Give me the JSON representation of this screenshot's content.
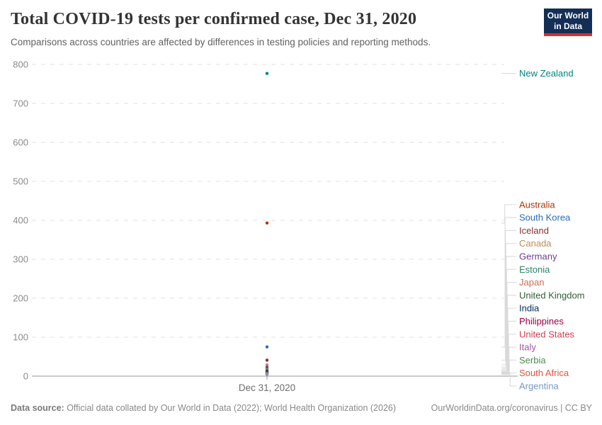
{
  "header": {
    "title": "Total COVID-19 tests per confirmed case, Dec 31, 2020",
    "subtitle": "Comparisons across countries are affected by differences in testing policies and reporting methods."
  },
  "logo": {
    "line1": "Our World",
    "line2": "in Data",
    "bg_color": "#132F56",
    "stripe_color": "#DE2C26"
  },
  "footer": {
    "source_label": "Data source:",
    "source_text": " Official data collated by Our World in Data (2022); World Health Organization (2026)",
    "link_text": "OurWorldinData.org/coronavirus | CC BY"
  },
  "chart_data": {
    "type": "scatter",
    "title": "Total COVID-19 tests per confirmed case, Dec 31, 2020",
    "x_tick_label": "Dec 31, 2020",
    "xlabel": "",
    "ylabel": "",
    "ylim": [
      0,
      800
    ],
    "yticks": [
      0,
      100,
      200,
      300,
      400,
      500,
      600,
      700,
      800
    ],
    "grid": "horizontal-dashed",
    "legend_position": "right-entity-labels",
    "axis_color": "#969696",
    "gridline_color": "#E2E2E2",
    "tick_label_color": "#8A8A8A",
    "connector_color": "#D8D8D8",
    "series": [
      {
        "name": "New Zealand",
        "value": 777,
        "color": "#00847E"
      },
      {
        "name": "Australia",
        "value": 393,
        "color": "#B13507"
      },
      {
        "name": "South Korea",
        "value": 75,
        "color": "#286BBB"
      },
      {
        "name": "Iceland",
        "value": 41,
        "color": "#883039"
      },
      {
        "name": "Canada",
        "value": 29,
        "color": "#BC8E5A"
      },
      {
        "name": "Germany",
        "value": 23,
        "color": "#6D3E91"
      },
      {
        "name": "Estonia",
        "value": 19,
        "color": "#2C8465"
      },
      {
        "name": "Japan",
        "value": 16,
        "color": "#C96E54"
      },
      {
        "name": "United Kingdom",
        "value": 13,
        "color": "#2E5E34"
      },
      {
        "name": "India",
        "value": 11,
        "color": "#00295B"
      },
      {
        "name": "Philippines",
        "value": 9.4,
        "color": "#970046"
      },
      {
        "name": "United States",
        "value": 8.3,
        "color": "#D73C50"
      },
      {
        "name": "Italy",
        "value": 7.4,
        "color": "#A2559C"
      },
      {
        "name": "Serbia",
        "value": 6,
        "color": "#4C8C4A"
      },
      {
        "name": "South Africa",
        "value": 5,
        "color": "#DC5746"
      },
      {
        "name": "Argentina",
        "value": 4.4,
        "color": "#7B97C4"
      }
    ]
  }
}
